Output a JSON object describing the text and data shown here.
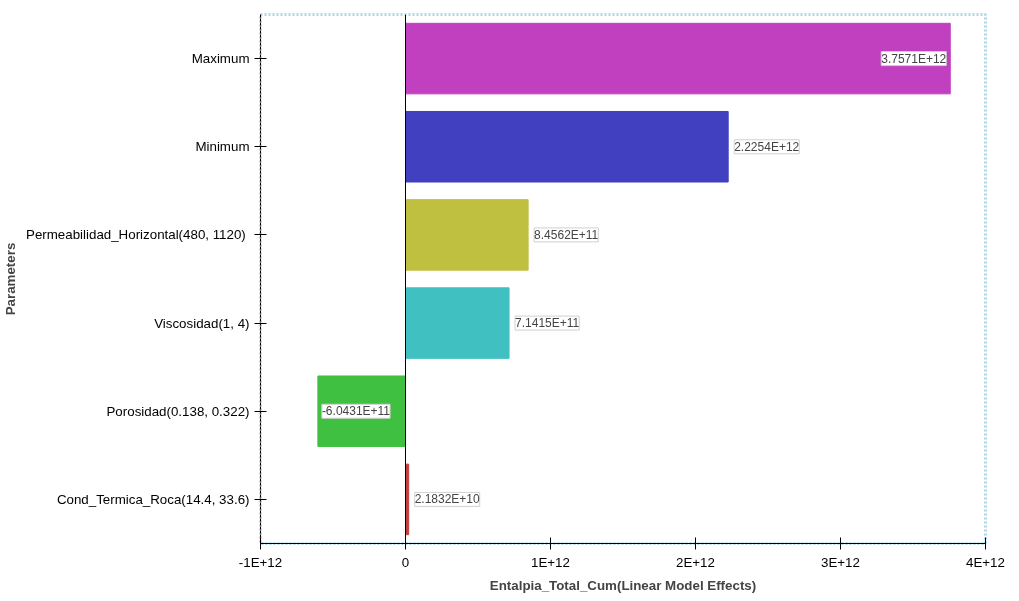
{
  "chart_data": {
    "type": "bar",
    "orientation": "horizontal",
    "xlabel": "Entalpia_Total_Cum(Linear Model Effects)",
    "ylabel": "Parameters",
    "categories": [
      "Maximum",
      "Minimum",
      "Permeabilidad_Horizontal(480,  1120)",
      "Viscosidad(1, 4)",
      "Porosidad(0.138, 0.322)",
      "Cond_Termica_Roca(14.4, 33.6)"
    ],
    "values": [
      3757100000000.0,
      2225400000000.0,
      845620000000.0,
      714150000000.0,
      -604310000000.0,
      21832000000.0
    ],
    "colors": [
      "#c040c0",
      "#4040c0",
      "#c0c040",
      "#40c0c0",
      "#40c040",
      "#c04040"
    ],
    "value_labels": [
      "3.7571E+12",
      "2.2254E+12",
      "8.4562E+11",
      "7.1415E+11",
      "-6.0431E+11",
      "2.1832E+10"
    ],
    "xlim": [
      -1000000000000.0,
      4000000000000.0
    ],
    "xticks": [
      {
        "value": -1000000000000.0,
        "label": "-1E+12"
      },
      0,
      {
        "value": 1000000000000.0,
        "label": "1E+12"
      },
      {
        "value": 2000000000000.0,
        "label": "2E+12"
      },
      {
        "value": 3000000000000.0,
        "label": "3E+12"
      },
      {
        "value": 4000000000000.0,
        "label": "4E+12"
      }
    ],
    "ref_lines": [
      {
        "axis": "x",
        "value": 0,
        "color": "#000000"
      }
    ],
    "grid": false
  }
}
